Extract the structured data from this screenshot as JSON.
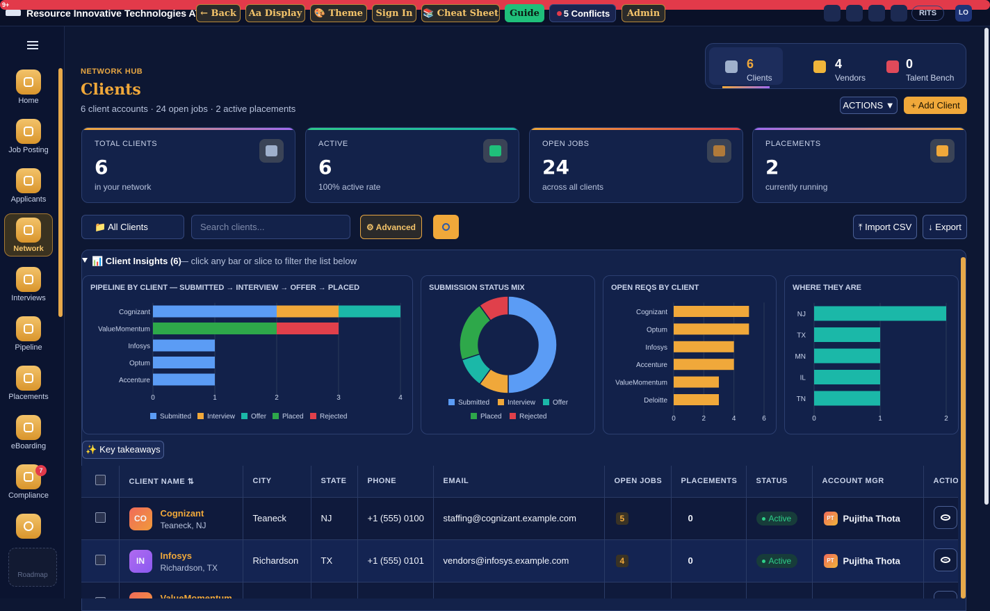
{
  "topbar": {
    "brand": "Resource Innovative Technologies ATS",
    "buttons": [
      "← Back",
      "Aa Display",
      "🎨 Theme",
      "Sign In",
      "📚 Cheat Sheet",
      "Guide",
      "5 Conflicts",
      "Admin"
    ],
    "notifications": "9+",
    "org": "RITS",
    "user": "LO"
  },
  "sidebar": {
    "items": [
      "Home",
      "Job Posting",
      "Applicants",
      "Network",
      "Interviews",
      "Pipeline",
      "Placements",
      "eBoarding",
      "Compliance"
    ],
    "compliance_badge": 7,
    "roadmap": "Roadmap"
  },
  "header": {
    "eyebrow": "NETWORK HUB",
    "title": "Clients",
    "subtitle": "6 client accounts · 24 open jobs · 2 active placements"
  },
  "tabs": [
    {
      "count": 6,
      "label": "Clients"
    },
    {
      "count": 4,
      "label": "Vendors"
    },
    {
      "count": 0,
      "label": "Talent Bench"
    }
  ],
  "actions": [
    "ACTIONS ▼",
    "+ Add Client"
  ],
  "stats": [
    {
      "label": "TOTAL CLIENTS",
      "value": 6,
      "note": "in your network"
    },
    {
      "label": "ACTIVE",
      "value": 6,
      "note": "100% active rate"
    },
    {
      "label": "OPEN JOBS",
      "value": 24,
      "note": "across all clients"
    },
    {
      "label": "PLACEMENTS",
      "value": 2,
      "note": "currently running"
    }
  ],
  "filters": {
    "select": "📁 All Clients",
    "search_placeholder": "Search clients...",
    "advanced": "⚙ Advanced",
    "import": "⤒ Import CSV",
    "export": "↓ Export"
  },
  "insights": {
    "title": "📊 Client Insights (6)",
    "hint": "— click any bar or slice to filter the list below",
    "takeaways": "✨ Key takeaways"
  },
  "chart_data": [
    {
      "type": "stacked-hbar",
      "title": "PIPELINE BY CLIENT — SUBMITTED → INTERVIEW → OFFER → PLACED",
      "categories": [
        "Cognizant",
        "ValueMomentum",
        "Infosys",
        "Optum",
        "Accenture"
      ],
      "series": [
        {
          "name": "Submitted",
          "color": "#5b9cf5",
          "values": [
            2,
            0,
            1,
            1,
            1
          ]
        },
        {
          "name": "Interview",
          "color": "#f0a83a",
          "values": [
            1,
            0,
            0,
            0,
            0
          ]
        },
        {
          "name": "Offer",
          "color": "#1bb8a8",
          "values": [
            1,
            0,
            0,
            0,
            0
          ]
        },
        {
          "name": "Placed",
          "color": "#2ea84a",
          "values": [
            0,
            2,
            0,
            0,
            0
          ]
        },
        {
          "name": "Rejected",
          "color": "#e0404b",
          "values": [
            0,
            1,
            0,
            0,
            0
          ]
        }
      ],
      "xlim": [
        0,
        4
      ],
      "xticks": [
        0,
        1,
        2,
        3,
        4
      ],
      "grid": true
    },
    {
      "type": "donut",
      "title": "SUBMISSION STATUS MIX",
      "categories": [
        "Submitted",
        "Interview",
        "Offer",
        "Placed",
        "Rejected"
      ],
      "values": [
        5,
        1,
        1,
        2,
        1
      ],
      "colors": [
        "#5b9cf5",
        "#f0a83a",
        "#1bb8a8",
        "#2ea84a",
        "#e0404b"
      ]
    },
    {
      "type": "hbar",
      "title": "OPEN REQS BY CLIENT",
      "categories": [
        "Cognizant",
        "Optum",
        "Infosys",
        "Accenture",
        "ValueMomentum",
        "Deloitte"
      ],
      "values": [
        5,
        5,
        4,
        4,
        3,
        3
      ],
      "color": "#f0a83a",
      "xlim": [
        0,
        6
      ],
      "xticks": [
        0,
        2,
        4,
        6
      ],
      "grid": true
    },
    {
      "type": "hbar",
      "title": "WHERE THEY ARE",
      "categories": [
        "NJ",
        "TX",
        "MN",
        "IL",
        "TN"
      ],
      "values": [
        2,
        1,
        1,
        1,
        1
      ],
      "color": "#1bb8a8",
      "xlim": [
        0,
        2
      ],
      "xticks": [
        0,
        1,
        2
      ],
      "grid": true
    }
  ],
  "table": {
    "columns": [
      "CLIENT NAME ⇅",
      "CITY",
      "STATE",
      "PHONE",
      "EMAIL",
      "OPEN JOBS",
      "PLACEMENTS",
      "STATUS",
      "ACCOUNT MGR",
      "ACTIONS"
    ],
    "rows": [
      {
        "initials": "CO",
        "name": "Cognizant",
        "location": "Teaneck, NJ",
        "city": "Teaneck",
        "state": "NJ",
        "phone": "+1 (555) 0100",
        "email": "staffing@cognizant.example.com",
        "open_jobs": 5,
        "placements": 0,
        "status": "Active",
        "manager_initials": "PT",
        "manager": "Pujitha Thota"
      },
      {
        "initials": "IN",
        "name": "Infosys",
        "location": "Richardson, TX",
        "city": "Richardson",
        "state": "TX",
        "phone": "+1 (555) 0101",
        "email": "vendors@infosys.example.com",
        "open_jobs": 4,
        "placements": 0,
        "status": "Active",
        "manager_initials": "PT",
        "manager": "Pujitha Thota"
      },
      {
        "name": "ValueMomentum"
      }
    ]
  }
}
